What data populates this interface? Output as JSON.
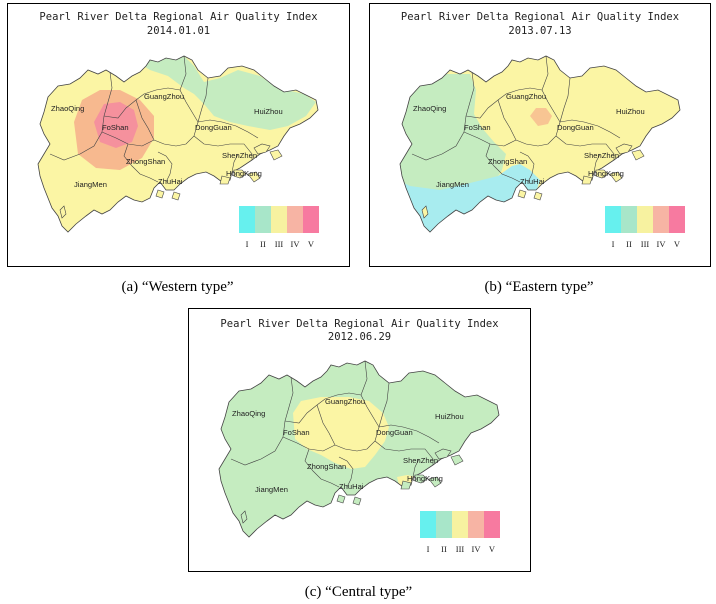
{
  "panels": [
    {
      "id": "a",
      "title": "Pearl River Delta Regional Air Quality Index",
      "date": "2014.01.01",
      "caption": "(a) “Western type”"
    },
    {
      "id": "b",
      "title": "Pearl River Delta Regional Air Quality Index",
      "date": "2013.07.13",
      "caption": "(b) “Eastern type”"
    },
    {
      "id": "c",
      "title": "Pearl River Delta Regional Air Quality Index",
      "date": "2012.06.29",
      "caption": "(c) “Central type”"
    }
  ],
  "cities": {
    "zhaoqing": "ZhaoQing",
    "guangzhou": "GuangZhou",
    "huizhou": "HuiZhou",
    "foshan": "FoShan",
    "dongguan": "DongGuan",
    "zhongshan": "ZhongShan",
    "shenzhen": "ShenZhen",
    "jiangmen": "JiangMen",
    "zhuhai": "ZhuHai",
    "hongkong": "HongKong"
  },
  "legend": {
    "levels": [
      "I",
      "II",
      "III",
      "IV",
      "V"
    ],
    "colors": [
      "#66f0ee",
      "#a8e6c9",
      "#f7f2a0",
      "#f7b4a4",
      "#f77aa0"
    ]
  },
  "colors": {
    "yellow": "#fbf5a4",
    "green": "#c5ecc0",
    "orange": "#f7b98f",
    "pink": "#f48aa0",
    "cyan": "#a8ecef",
    "border": "#444444"
  }
}
